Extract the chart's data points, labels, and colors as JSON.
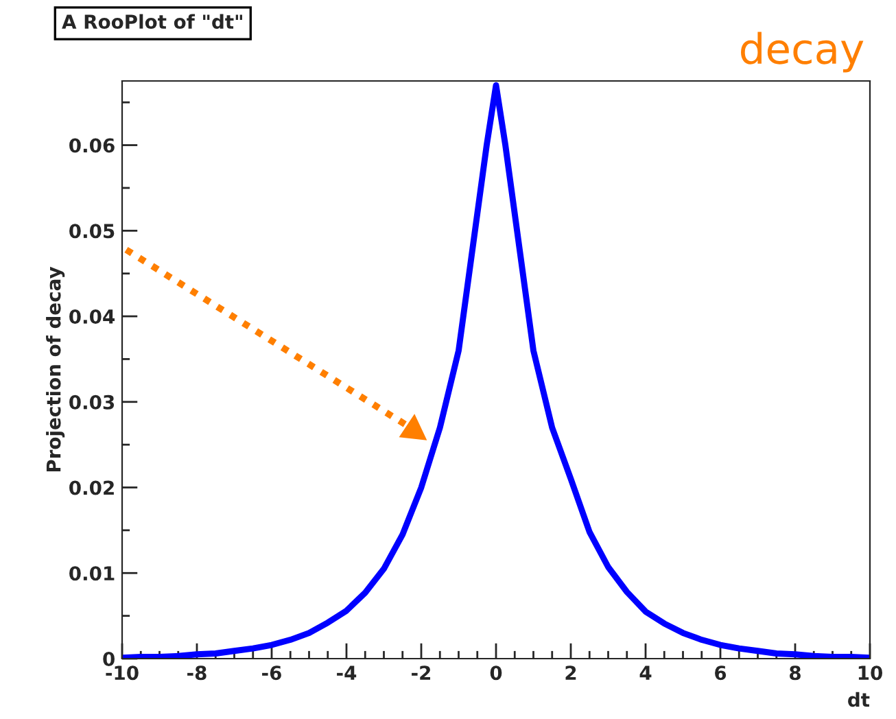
{
  "chart_data": {
    "type": "line",
    "title": "A RooPlot of \"dt\"",
    "xlabel": "dt",
    "ylabel": "Projection of decay",
    "annotations": [
      "decay"
    ],
    "x": [
      -10,
      -9.5,
      -9,
      -8.5,
      -8,
      -7.5,
      -7,
      -6.5,
      -6,
      -5.5,
      -5,
      -4.5,
      -4,
      -3.5,
      -3,
      -2.5,
      -2,
      -1.5,
      -1,
      -0.5,
      -0.25,
      0,
      0.25,
      0.5,
      1,
      1.5,
      2,
      2.5,
      3,
      3.5,
      4,
      4.5,
      5,
      5.5,
      6,
      6.5,
      7,
      7.5,
      8,
      8.5,
      9,
      9.5,
      10
    ],
    "series": [
      {
        "color": "#0000ff",
        "values": [
          0.0001,
          0.0002,
          0.0002,
          0.0003,
          0.0005,
          0.0006,
          0.0009,
          0.0012,
          0.0016,
          0.0022,
          0.003,
          0.0042,
          0.0056,
          0.0077,
          0.0105,
          0.0145,
          0.02,
          0.027,
          0.036,
          0.052,
          0.06,
          0.067,
          0.06,
          0.052,
          0.036,
          0.027,
          0.021,
          0.0148,
          0.0107,
          0.0078,
          0.0055,
          0.0041,
          0.003,
          0.0022,
          0.0016,
          0.0012,
          0.0009,
          0.0006,
          0.0005,
          0.0003,
          0.0002,
          0.0002,
          0.0001
        ]
      }
    ],
    "xlim": [
      -10,
      10
    ],
    "xticks": [
      -10,
      -8,
      -6,
      -4,
      -2,
      0,
      2,
      4,
      6,
      8,
      10
    ],
    "ylim": [
      0,
      0.0675
    ],
    "yticks": [
      0,
      0.01,
      0.02,
      0.03,
      0.04,
      0.05,
      0.06
    ],
    "grid": false,
    "legend": false,
    "marker": "none",
    "line_style": "solid"
  }
}
